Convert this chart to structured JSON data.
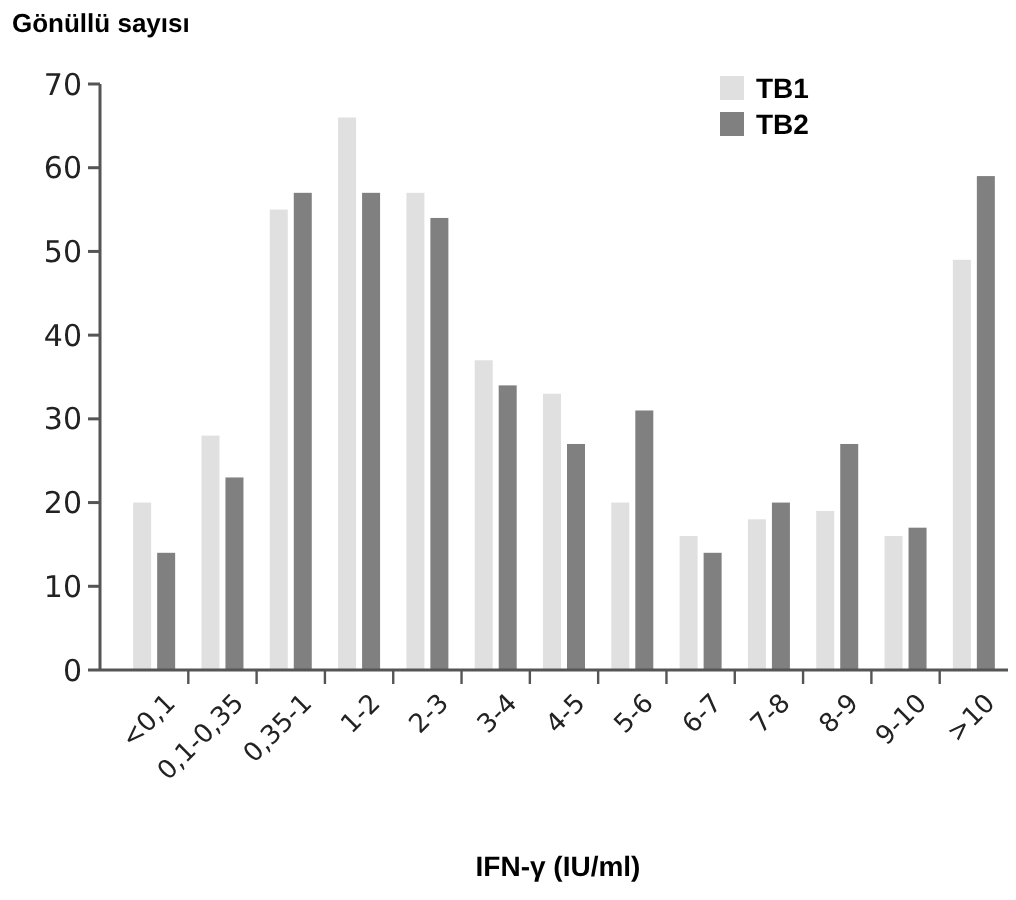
{
  "chart_data": {
    "type": "bar",
    "ylabel": "Gönüllü sayısı",
    "xlabel": "IFN-γ (IU/ml)",
    "categories": [
      "<0,1",
      "0,1-0,35",
      "0,35-1",
      "1-2",
      "2-3",
      "3-4",
      "4-5",
      "5-6",
      "6-7",
      "7-8",
      "8-9",
      "9-10",
      ">10"
    ],
    "series": [
      {
        "name": "TB1",
        "color": "#e0e0e0",
        "values": [
          20,
          28,
          55,
          66,
          57,
          37,
          33,
          20,
          16,
          18,
          19,
          16,
          49
        ]
      },
      {
        "name": "TB2",
        "color": "#808080",
        "values": [
          14,
          23,
          57,
          57,
          54,
          34,
          27,
          31,
          14,
          20,
          27,
          17,
          59
        ]
      }
    ],
    "ylim": [
      0,
      70
    ],
    "yticks": [
      0,
      10,
      20,
      30,
      40,
      50,
      60,
      70
    ],
    "grid": false,
    "legend": "top right"
  }
}
